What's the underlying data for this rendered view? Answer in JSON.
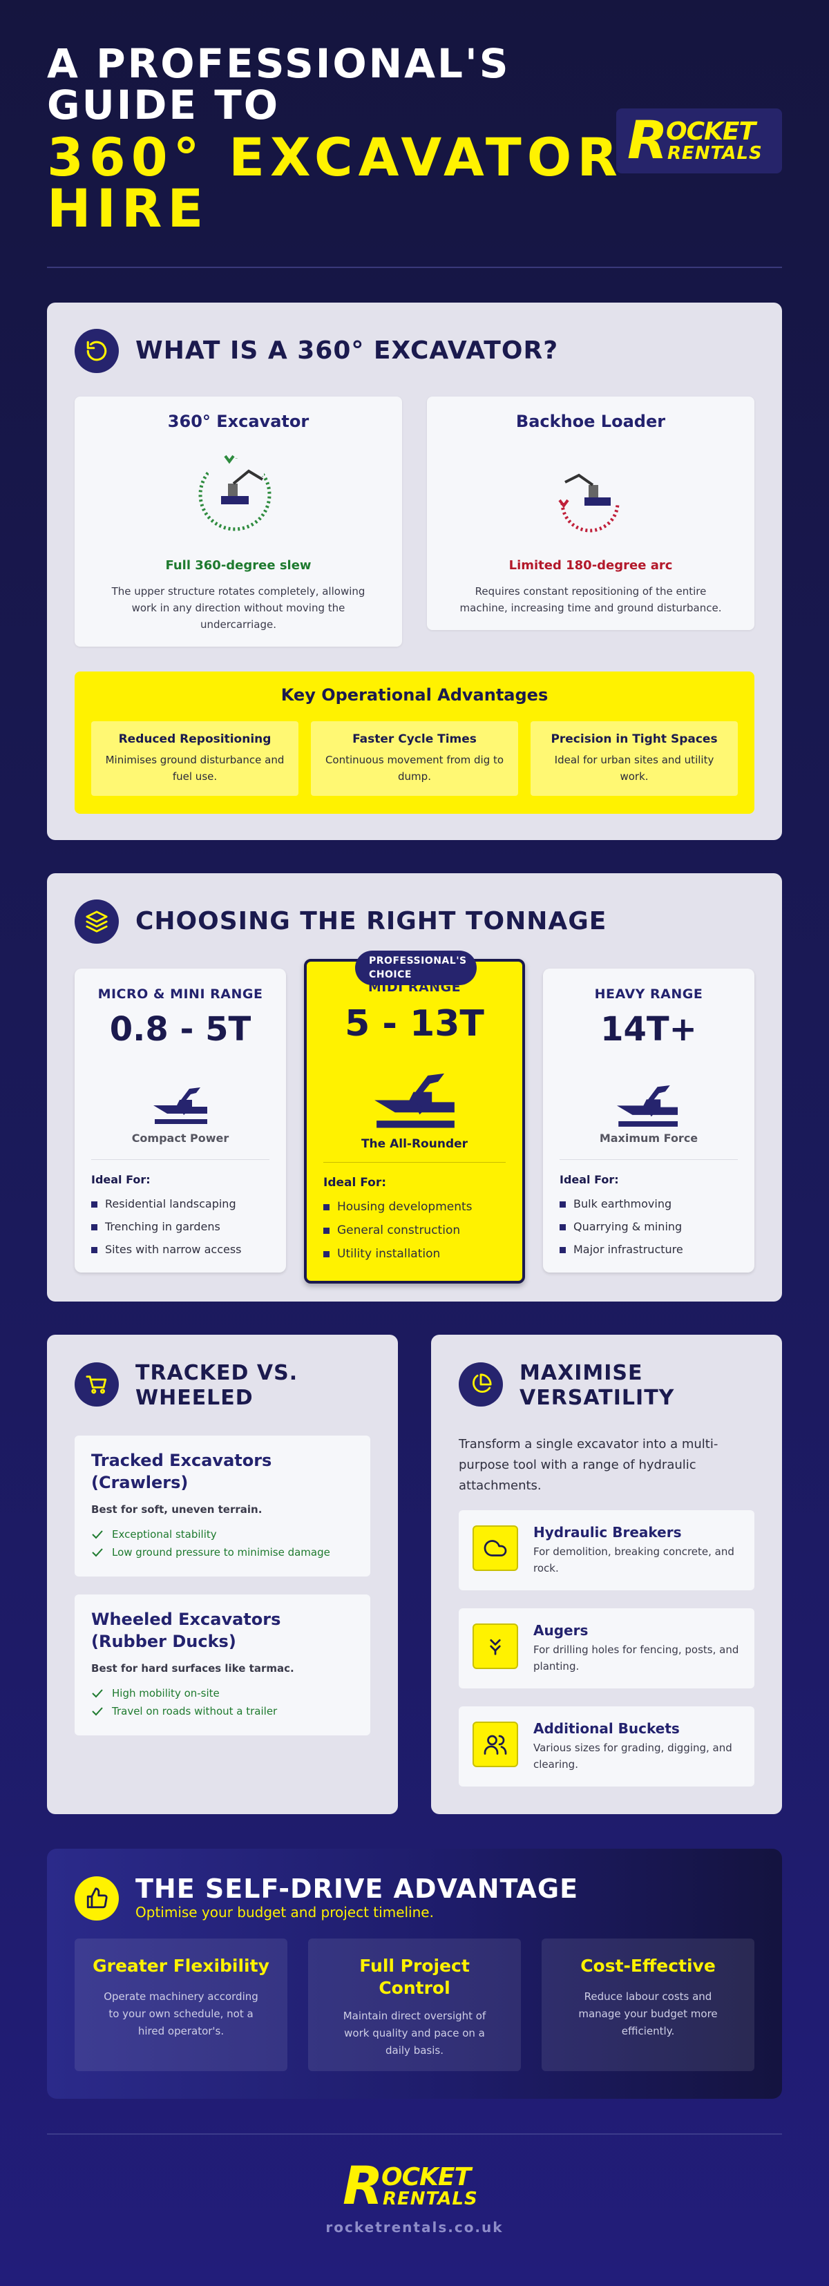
{
  "header": {
    "title_line1": "A PROFESSIONAL'S",
    "title_line2": "GUIDE TO",
    "title_line3": "360° EXCAVATOR",
    "title_line4": "HIRE"
  },
  "brand": {
    "logo_letter": "R",
    "logo_word1": "OCKET",
    "logo_word2": "RENTALS",
    "accent_color": "#fff200",
    "navy_color": "#26246e"
  },
  "what_is": {
    "title": "WHAT IS A 360° EXCAVATOR?",
    "icon": "rotate-icon",
    "excavator": {
      "title": "360° Excavator",
      "subtitle": "Full 360-degree slew",
      "subtitle_color": "#1e7a2e",
      "description": "The upper structure rotates completely, allowing work in any direction without moving the undercarriage."
    },
    "backhoe": {
      "title": "Backhoe Loader",
      "subtitle": "Limited 180-degree arc",
      "subtitle_color": "#b3182a",
      "description": "Requires constant repositioning of the entire machine, increasing time and ground disturbance."
    },
    "advantages": {
      "title": "Key Operational Advantages",
      "items": [
        {
          "title": "Reduced Repositioning",
          "description": "Minimises ground disturbance and fuel use."
        },
        {
          "title": "Faster Cycle Times",
          "description": "Continuous movement from dig to dump."
        },
        {
          "title": "Precision in Tight Spaces",
          "description": "Ideal for urban sites and utility work."
        }
      ]
    }
  },
  "tonnage": {
    "title": "CHOOSING THE RIGHT TONNAGE",
    "icon": "layers-icon",
    "badge": "PROFESSIONAL'S CHOICE",
    "ideal_label": "Ideal For:",
    "tiers": [
      {
        "name": "MICRO & MINI RANGE",
        "range": "0.8 - 5T",
        "tagline": "Compact Power",
        "uses": [
          "Residential landscaping",
          "Trenching in gardens",
          "Sites with narrow access"
        ]
      },
      {
        "name": "MIDI RANGE",
        "range": "5 - 13T",
        "tagline": "The All-Rounder",
        "uses": [
          "Housing developments",
          "General construction",
          "Utility installation"
        ]
      },
      {
        "name": "HEAVY RANGE",
        "range": "14T+",
        "tagline": "Maximum Force",
        "uses": [
          "Bulk earthmoving",
          "Quarrying & mining",
          "Major infrastructure"
        ]
      }
    ]
  },
  "tracked_wheeled": {
    "title_line1": "TRACKED VS.",
    "title_line2": "WHEELED",
    "icon": "cart-icon",
    "tracked": {
      "title_line1": "Tracked Excavators",
      "title_line2": "(Crawlers)",
      "note": "Best for soft, uneven terrain.",
      "points": [
        "Exceptional stability",
        "Low ground pressure to minimise damage"
      ]
    },
    "wheeled": {
      "title_line1": "Wheeled Excavators",
      "title_line2": "(Rubber Ducks)",
      "note": "Best for hard surfaces like tarmac.",
      "points": [
        "High mobility on-site",
        "Travel on roads without a trailer"
      ]
    }
  },
  "versatility": {
    "title_line1": "MAXIMISE",
    "title_line2": "VERSATILITY",
    "icon": "pie-chart-icon",
    "intro": "Transform a single excavator into a multi-purpose tool with a range of hydraulic attachments.",
    "attachments": [
      {
        "title": "Hydraulic Breakers",
        "description": "For demolition, breaking concrete, and rock.",
        "icon": "cloud-icon"
      },
      {
        "title": "Augers",
        "description": "For drilling holes for fencing, posts, and planting.",
        "icon": "double-chevron-down-icon"
      },
      {
        "title": "Additional Buckets",
        "description": "Various sizes for grading, digging, and clearing.",
        "icon": "users-icon"
      }
    ]
  },
  "self_drive": {
    "title": "THE SELF-DRIVE ADVANTAGE",
    "subtitle": "Optimise your budget and project timeline.",
    "icon": "thumbs-up-icon",
    "columns": [
      {
        "title": "Greater Flexibility",
        "description": "Operate machinery according to your own schedule, not a hired operator's."
      },
      {
        "title": "Full Project Control",
        "description": "Maintain direct oversight of work quality and pace on a daily basis."
      },
      {
        "title": "Cost-Effective",
        "description": "Reduce labour costs and manage your budget more efficiently."
      }
    ]
  },
  "footer": {
    "url": "rocketrentals.co.uk"
  }
}
